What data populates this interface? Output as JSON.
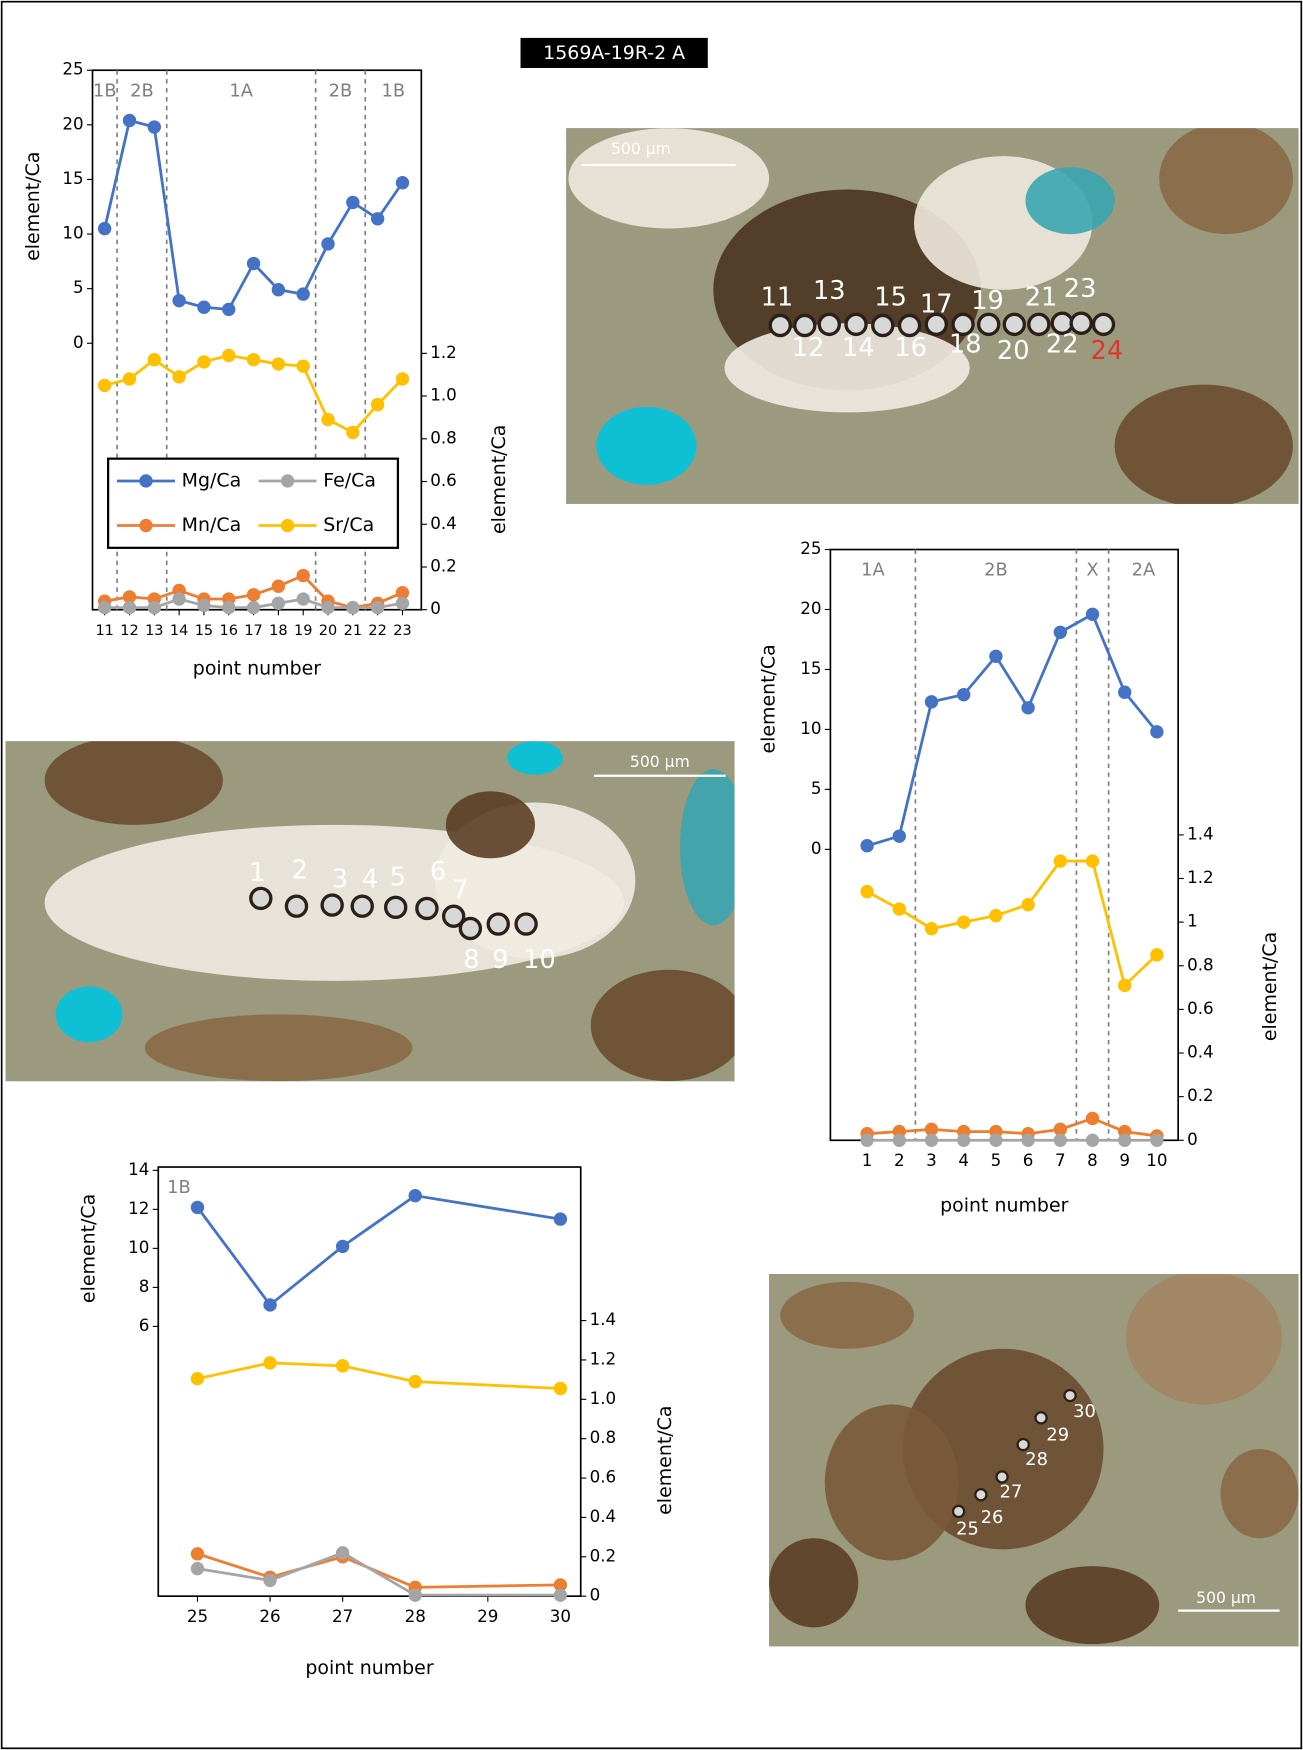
{
  "figure_title": "1569A-19R-2 A",
  "micrographs": [
    {
      "point_labels": [
        "11",
        "12",
        "13",
        "14",
        "15",
        "16",
        "17",
        "18",
        "19",
        "20",
        "21",
        "22",
        "23",
        "24"
      ],
      "scale_bar": "500 µm"
    },
    {
      "point_labels": [
        "1",
        "2",
        "3",
        "4",
        "5",
        "6",
        "7",
        "8",
        "9",
        "10"
      ],
      "scale_bar": "500 µm"
    },
    {
      "point_labels": [
        "25",
        "26",
        "27",
        "28",
        "29",
        "30"
      ],
      "scale_bar": "500 µm"
    }
  ],
  "chart_data": [
    {
      "type": "line",
      "y_label": "element/Ca",
      "y2_label": "element/Ca",
      "x_label": "point number",
      "x": [
        11,
        12,
        13,
        14,
        15,
        16,
        17,
        18,
        19,
        20,
        21,
        22,
        23
      ],
      "xlim": [
        10.51,
        23.76
      ],
      "xticks": [
        11,
        12,
        13,
        14,
        15,
        16,
        17,
        18,
        19,
        20,
        21,
        22,
        23
      ],
      "ylim": [
        -24.4,
        25
      ],
      "yticks": [
        0,
        5,
        10,
        15,
        20,
        25
      ],
      "y2lim": [
        0,
        2.525
      ],
      "y2ticks": [
        0,
        0.2,
        0.4,
        0.6,
        0.8,
        {
          "value": 1,
          "label": "1.0"
        },
        1.2
      ],
      "zones": {
        "boundaries": [
          11.5,
          13.5,
          19.5,
          21.5
        ],
        "labels": [
          "1B",
          "2B",
          "1A",
          "2B",
          "1B"
        ]
      },
      "legend": "center-left",
      "series": [
        {
          "name": "Mg/Ca",
          "color": "#4472c4",
          "values": [
            10.5,
            20.4,
            19.8,
            3.9,
            3.3,
            3.1,
            7.3,
            4.9,
            4.5,
            9.1,
            12.9,
            11.4,
            14.7
          ]
        },
        {
          "name": "Mn/Ca",
          "color": "#ed7d31",
          "axis": "y2",
          "values": [
            0.04,
            0.06,
            0.05,
            0.09,
            0.05,
            0.05,
            0.07,
            0.11,
            0.16,
            0.04,
            0.01,
            0.03,
            0.08
          ]
        },
        {
          "name": "Fe/Ca",
          "color": "#a5a5a5",
          "axis": "y2",
          "values": [
            0.01,
            0.01,
            0.01,
            0.05,
            0.02,
            0.01,
            0.01,
            0.03,
            0.05,
            0.01,
            0.01,
            0.01,
            0.03
          ]
        },
        {
          "name": "Sr/Ca",
          "color": "#ffc000",
          "axis": "y2",
          "values": [
            1.05,
            1.08,
            1.17,
            1.09,
            1.16,
            1.19,
            1.17,
            1.15,
            1.14,
            0.89,
            0.83,
            0.96,
            1.08
          ]
        }
      ]
    },
    {
      "type": "line",
      "y_label": "element/Ca",
      "y2_label": "element/Ca",
      "x_label": "point number",
      "x": [
        1,
        2,
        3,
        4,
        5,
        6,
        7,
        8,
        9,
        10
      ],
      "xlim": [
        -0.14,
        10.66
      ],
      "xticks": [
        1,
        2,
        3,
        4,
        5,
        6,
        7,
        8,
        9,
        10
      ],
      "ylim": [
        -24.26,
        25
      ],
      "yticks": [
        0,
        5,
        10,
        15,
        20,
        25
      ],
      "y2lim": [
        0,
        2.708
      ],
      "y2ticks": [
        0,
        0.2,
        0.4,
        0.6,
        0.8,
        1,
        1.2,
        1.4
      ],
      "zones": {
        "boundaries": [
          2.5,
          7.5,
          8.5
        ],
        "labels": [
          "1A",
          "2B",
          "X",
          "2A"
        ]
      },
      "series": [
        {
          "color": "#4472c4",
          "values": [
            0.3,
            1.1,
            12.3,
            12.9,
            16.1,
            11.8,
            18.1,
            19.6,
            13.1,
            9.8
          ]
        },
        {
          "color": "#ed7d31",
          "axis": "y2",
          "values": [
            0.03,
            0.04,
            0.05,
            0.04,
            0.04,
            0.03,
            0.05,
            0.1,
            0.04,
            0.02
          ]
        },
        {
          "color": "#a5a5a5",
          "axis": "y2",
          "values": [
            0,
            0,
            0,
            0,
            0,
            0,
            0,
            0,
            0,
            0
          ]
        },
        {
          "color": "#ffc000",
          "axis": "y2",
          "values": [
            1.14,
            1.06,
            0.97,
            1.0,
            1.03,
            1.08,
            1.28,
            1.28,
            0.71,
            0.85
          ]
        }
      ]
    },
    {
      "type": "line",
      "y_label": "element/Ca",
      "y2_label": "element/Ca",
      "x_label": "point number",
      "x": [
        25,
        26,
        27,
        28,
        30
      ],
      "xlim": [
        24.46,
        30.28
      ],
      "xticks": [
        25,
        26,
        27,
        28,
        29,
        30
      ],
      "ylim": [
        -7.83,
        14.17
      ],
      "yticks": [
        6,
        8,
        10,
        12,
        14
      ],
      "y2lim": [
        0,
        2.18
      ],
      "y2ticks": [
        0,
        0.2,
        0.4,
        0.6,
        0.8,
        {
          "value": 1,
          "label": "1.0"
        },
        1.2,
        1.4
      ],
      "zones": {
        "labels": [
          "1B"
        ]
      },
      "series": [
        {
          "color": "#4472c4",
          "values": [
            12.1,
            7.1,
            10.1,
            12.7,
            11.5
          ]
        },
        {
          "color": "#ed7d31",
          "axis": "y2",
          "values": [
            0.215,
            0.096,
            0.2,
            0.045,
            0.057
          ]
        },
        {
          "color": "#a5a5a5",
          "axis": "y2",
          "values": [
            0.14,
            0.08,
            0.22,
            0.005,
            0.005
          ]
        },
        {
          "color": "#ffc000",
          "axis": "y2",
          "values": [
            1.105,
            1.185,
            1.17,
            1.09,
            1.055
          ]
        }
      ]
    }
  ]
}
